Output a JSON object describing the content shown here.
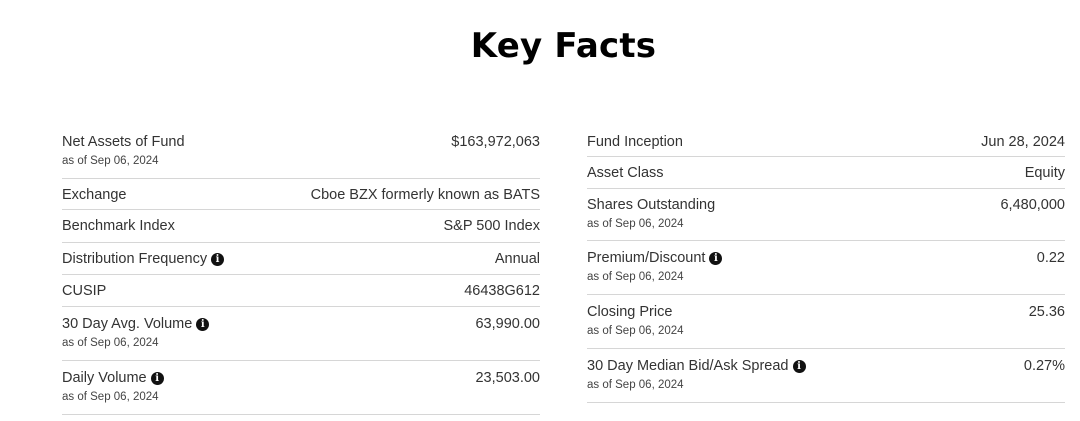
{
  "title": "Key Facts",
  "left": [
    {
      "label": "Net Assets of Fund",
      "sub": "as of Sep 06, 2024",
      "value": "$163,972,063",
      "info": false
    },
    {
      "label": "Exchange",
      "sub": "",
      "value": "Cboe BZX formerly known as BATS",
      "info": false
    },
    {
      "label": "Benchmark Index",
      "sub": "",
      "value": "S&P 500 Index",
      "info": false
    },
    {
      "label": "Distribution Frequency",
      "sub": "",
      "value": "Annual",
      "info": true
    },
    {
      "label": "CUSIP",
      "sub": "",
      "value": "46438G612",
      "info": false
    },
    {
      "label": "30 Day Avg. Volume",
      "sub": "as of Sep 06, 2024",
      "value": "63,990.00",
      "info": true
    },
    {
      "label": "Daily Volume",
      "sub": "as of Sep 06, 2024",
      "value": "23,503.00",
      "info": true
    }
  ],
  "right": [
    {
      "label": "Fund Inception",
      "sub": "",
      "value": "Jun 28, 2024",
      "info": false
    },
    {
      "label": "Asset Class",
      "sub": "",
      "value": "Equity",
      "info": false
    },
    {
      "label": "Shares Outstanding",
      "sub": "as of Sep 06, 2024",
      "value": "6,480,000",
      "info": false
    },
    {
      "label": "Premium/Discount",
      "sub": "as of Sep 06, 2024",
      "value": "0.22",
      "info": true
    },
    {
      "label": "Closing Price",
      "sub": "as of Sep 06, 2024",
      "value": "25.36",
      "info": false
    },
    {
      "label": "30 Day Median Bid/Ask Spread",
      "sub": "as of Sep 06, 2024",
      "value": "0.27%",
      "info": true
    }
  ],
  "icons": {
    "info": "info-icon",
    "info_glyph": "i"
  }
}
